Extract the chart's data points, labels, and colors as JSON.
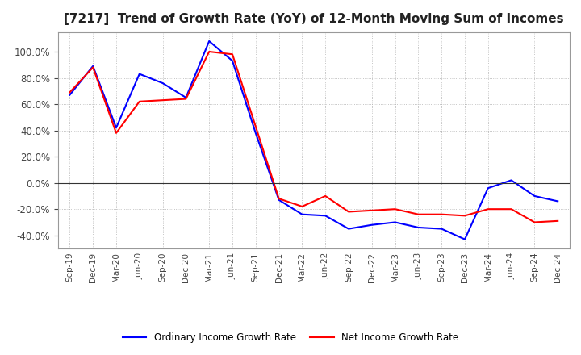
{
  "title": "[7217]  Trend of Growth Rate (YoY) of 12-Month Moving Sum of Incomes",
  "title_fontsize": 11,
  "background_color": "#ffffff",
  "grid_color": "#aaaaaa",
  "ylim": [
    -50,
    115
  ],
  "yticks": [
    -40,
    -20,
    0,
    20,
    40,
    60,
    80,
    100
  ],
  "x_labels": [
    "Sep-19",
    "Dec-19",
    "Mar-20",
    "Jun-20",
    "Sep-20",
    "Dec-20",
    "Mar-21",
    "Jun-21",
    "Sep-21",
    "Dec-21",
    "Mar-22",
    "Jun-22",
    "Sep-22",
    "Dec-22",
    "Mar-23",
    "Jun-23",
    "Sep-23",
    "Dec-23",
    "Mar-24",
    "Jun-24",
    "Sep-24",
    "Dec-24"
  ],
  "ordinary_income": [
    67,
    89,
    42,
    83,
    76,
    65,
    108,
    93,
    38,
    -13,
    -24,
    -25,
    -35,
    -32,
    -30,
    -34,
    -35,
    -43,
    -4,
    2,
    -10,
    -14
  ],
  "net_income": [
    69,
    88,
    38,
    62,
    63,
    64,
    100,
    98,
    43,
    -12,
    -18,
    -10,
    -22,
    -21,
    -20,
    -24,
    -24,
    -25,
    -20,
    -20,
    -30,
    -29
  ],
  "ordinary_color": "#0000ff",
  "net_color": "#ff0000",
  "line_width": 1.5,
  "legend_ordinary": "Ordinary Income Growth Rate",
  "legend_net": "Net Income Growth Rate"
}
